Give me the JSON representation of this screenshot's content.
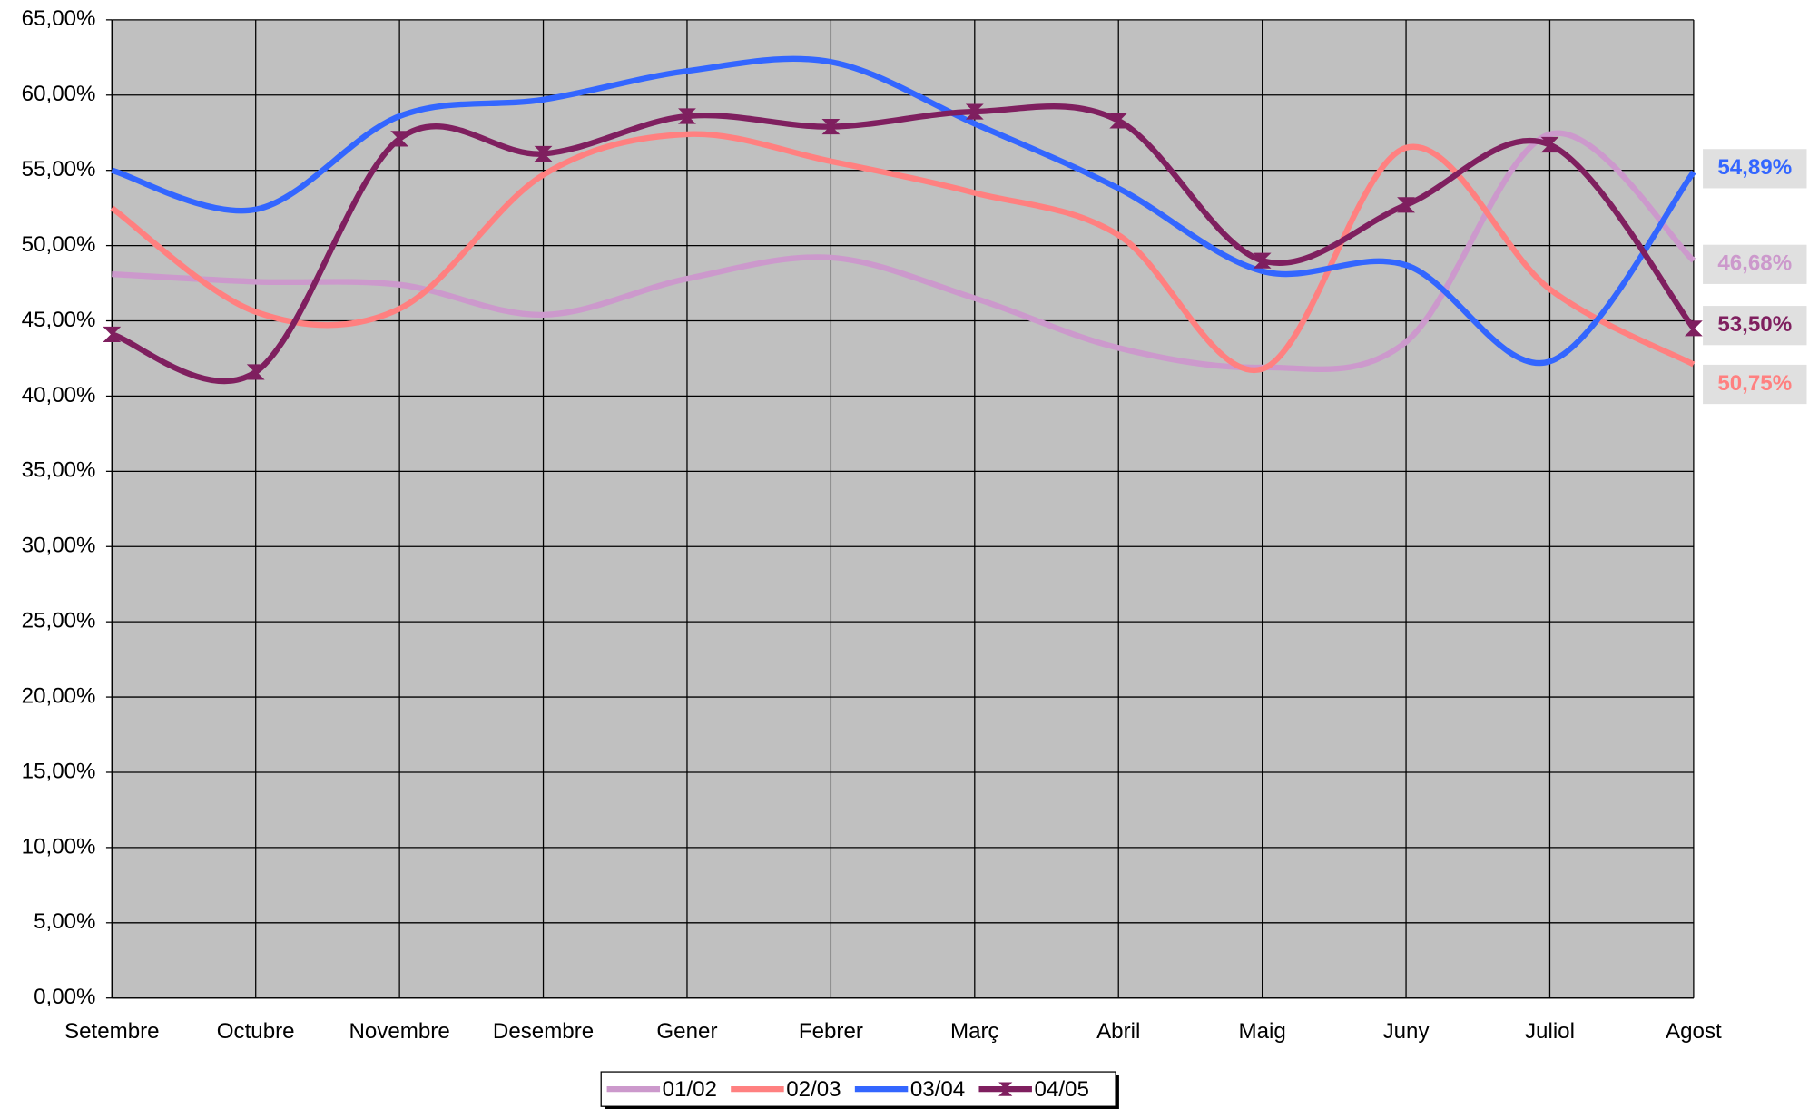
{
  "chart_data": {
    "type": "line",
    "categories": [
      "Setembre",
      "Octubre",
      "Novembre",
      "Desembre",
      "Gener",
      "Febrer",
      "Març",
      "Abril",
      "Maig",
      "Juny",
      "Juliol",
      "Agost"
    ],
    "series": [
      {
        "name": "01/02",
        "color": "#cc99cc",
        "values": [
          48.1,
          47.6,
          47.4,
          45.4,
          47.8,
          49.2,
          46.5,
          43.2,
          41.9,
          43.6,
          57.4,
          49.0
        ]
      },
      {
        "name": "02/03",
        "color": "#ff8080",
        "values": [
          52.5,
          45.6,
          45.8,
          54.7,
          57.4,
          55.6,
          53.5,
          50.7,
          41.8,
          56.5,
          47.1,
          42.1
        ]
      },
      {
        "name": "03/04",
        "color": "#3366ff",
        "values": [
          55.0,
          52.4,
          58.6,
          59.7,
          61.6,
          62.2,
          58.1,
          53.8,
          48.3,
          48.7,
          42.3,
          54.89
        ]
      },
      {
        "name": "04/05",
        "color": "#7f1f5f",
        "values": [
          44.1,
          41.6,
          57.1,
          56.1,
          58.6,
          57.9,
          58.9,
          58.3,
          49.0,
          52.7,
          56.7,
          44.5
        ],
        "markers": true
      }
    ],
    "ylim": [
      0,
      65
    ],
    "yticks": [
      {
        "value": 0,
        "label": "0,00%"
      },
      {
        "value": 5,
        "label": "5,00%"
      },
      {
        "value": 10,
        "label": "10,00%"
      },
      {
        "value": 15,
        "label": "15,00%"
      },
      {
        "value": 20,
        "label": "20,00%"
      },
      {
        "value": 25,
        "label": "25,00%"
      },
      {
        "value": 30,
        "label": "30,00%"
      },
      {
        "value": 35,
        "label": "35,00%"
      },
      {
        "value": 40,
        "label": "40,00%"
      },
      {
        "value": 45,
        "label": "45,00%"
      },
      {
        "value": 50,
        "label": "50,00%"
      },
      {
        "value": 55,
        "label": "55,00%"
      },
      {
        "value": 60,
        "label": "60,00%"
      },
      {
        "value": 65,
        "label": "65,00%"
      }
    ],
    "grid": true,
    "legend": "bottom",
    "annotations": [
      {
        "text": "54,89%",
        "color": "#3366ff"
      },
      {
        "text": "46,68%",
        "color": "#cc99cc"
      },
      {
        "text": "53,50%",
        "color": "#7f1f5f"
      },
      {
        "text": "50,75%",
        "color": "#ff8080"
      }
    ]
  }
}
